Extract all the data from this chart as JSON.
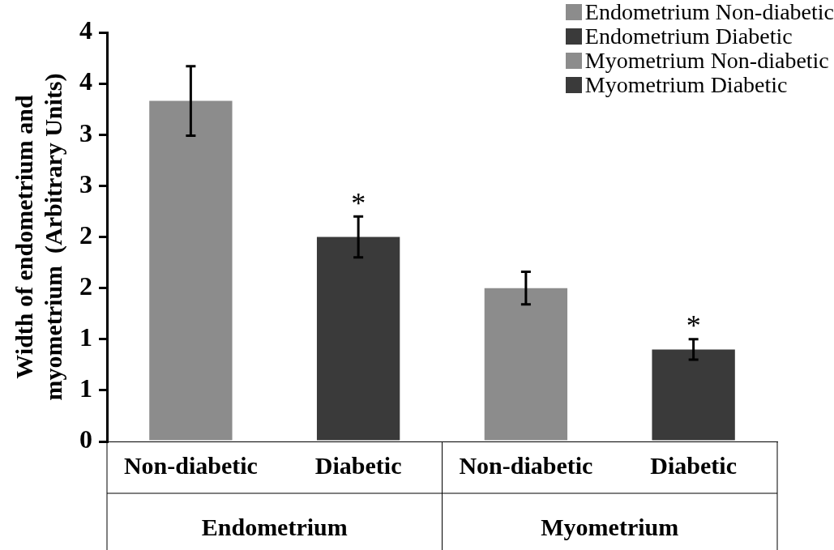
{
  "chart_data": {
    "type": "bar",
    "ylabel": "Width of endometrium and myometrium  (Arbitrary Units)",
    "categories": [
      "Non-diabetic",
      "Diabetic",
      "Non-diabetic",
      "Diabetic"
    ],
    "series": [
      {
        "name": "Endometrium Non-diabetic",
        "color": "#8c8c8c",
        "values": [
          3.33,
          null,
          null,
          null
        ],
        "errors": [
          0.34,
          null,
          null,
          null
        ]
      },
      {
        "name": "Endometrium Diabetic",
        "color": "#3a3a3a",
        "values": [
          null,
          2.0,
          null,
          null
        ],
        "errors": [
          null,
          0.2,
          null,
          null
        ]
      },
      {
        "name": "Myometrium Non-diabetic",
        "color": "#8c8c8c",
        "values": [
          null,
          null,
          1.5,
          null
        ],
        "errors": [
          null,
          null,
          0.16,
          null
        ]
      },
      {
        "name": "Myometrium Diabetic",
        "color": "#3a3a3a",
        "values": [
          null,
          null,
          null,
          0.9
        ],
        "errors": [
          null,
          null,
          null,
          0.1
        ]
      }
    ],
    "ylim": [
      0,
      4
    ],
    "yticks": [
      0,
      {
        "value": 0.5,
        "label": "1"
      },
      1,
      {
        "value": 1.5,
        "label": "2"
      },
      2,
      {
        "value": 2.5,
        "label": "3"
      },
      3,
      {
        "value": 3.5,
        "label": "4"
      },
      4
    ],
    "annotations": [
      {
        "text": "*",
        "x": "Diabetic",
        "y": 2.2
      },
      {
        "text": "*",
        "y": 1.0
      },
      "Endometrium",
      "Myometrium"
    ],
    "grid": false,
    "legend": "top right"
  }
}
